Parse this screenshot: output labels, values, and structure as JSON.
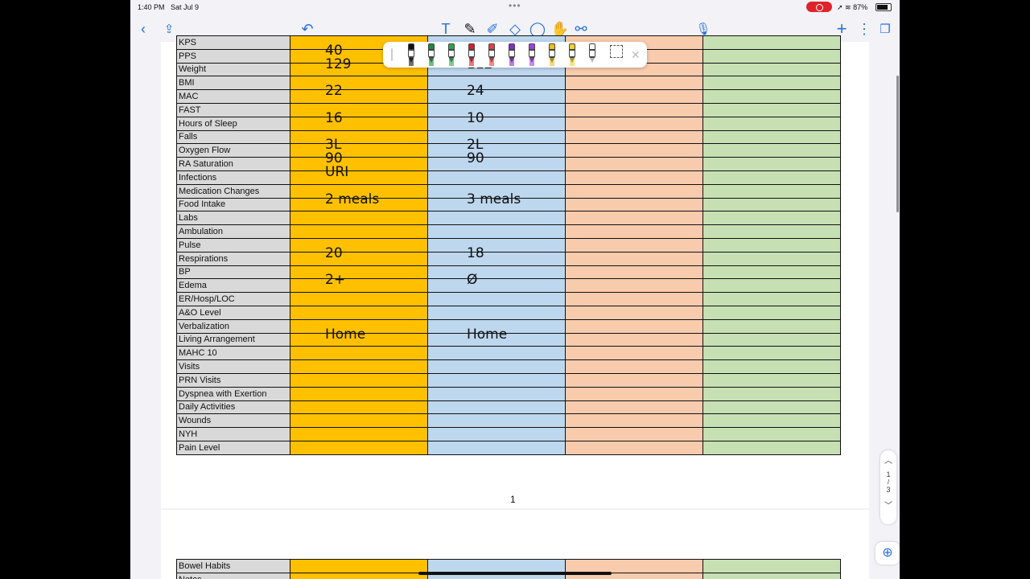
{
  "status": {
    "time": "1:40 PM",
    "date": "Sat Jul 9",
    "battery": "87%"
  },
  "table": {
    "partial_top_label": "KPS",
    "rows": [
      {
        "label": "PPS",
        "v1": "40",
        "v2": ""
      },
      {
        "label": "Weight",
        "v1": "129",
        "v2": "112"
      },
      {
        "label": "BMI",
        "v1": "",
        "v2": ""
      },
      {
        "label": "MAC",
        "v1": "22",
        "v2": "24"
      },
      {
        "label": "FAST",
        "v1": "",
        "v2": ""
      },
      {
        "label": "Hours of Sleep",
        "v1": "16",
        "v2": "10"
      },
      {
        "label": "Falls",
        "v1": "",
        "v2": ""
      },
      {
        "label": "Oxygen Flow",
        "v1": "3L",
        "v2": "2L"
      },
      {
        "label": "RA Saturation",
        "v1": "90",
        "v2": "90"
      },
      {
        "label": "Infections",
        "v1": "URI",
        "v2": ""
      },
      {
        "label": "Medication Changes",
        "v1": "",
        "v2": ""
      },
      {
        "label": "Food Intake",
        "v1": "2 meals",
        "v2": "3 meals"
      },
      {
        "label": "Labs",
        "v1": "",
        "v2": ""
      },
      {
        "label": "Ambulation",
        "v1": "",
        "v2": ""
      },
      {
        "label": "Pulse",
        "v1": "",
        "v2": ""
      },
      {
        "label": "Respirations",
        "v1": "20",
        "v2": "18"
      },
      {
        "label": "BP",
        "v1": "",
        "v2": ""
      },
      {
        "label": "Edema",
        "v1": "2+",
        "v2": "Ø"
      },
      {
        "label": "ER/Hosp/LOC",
        "v1": "",
        "v2": ""
      },
      {
        "label": "A&O Level",
        "v1": "",
        "v2": ""
      },
      {
        "label": "Verbalization",
        "v1": "",
        "v2": ""
      },
      {
        "label": "Living Arrangement",
        "v1": "Home",
        "v2": "Home"
      },
      {
        "label": "MAHC 10",
        "v1": "",
        "v2": ""
      },
      {
        "label": "Visits",
        "v1": "",
        "v2": ""
      },
      {
        "label": "PRN Visits",
        "v1": "",
        "v2": ""
      },
      {
        "label": "Dyspnea with Exertion",
        "v1": "",
        "v2": ""
      },
      {
        "label": "Daily Activities",
        "v1": "",
        "v2": ""
      },
      {
        "label": "Wounds",
        "v1": "",
        "v2": ""
      },
      {
        "label": "NYH",
        "v1": "",
        "v2": ""
      },
      {
        "label": "Pain Level",
        "v1": "",
        "v2": ""
      }
    ],
    "page2_rows": [
      {
        "label": "Bowel Habits"
      },
      {
        "label": "Notes"
      }
    ]
  },
  "page_number": "1",
  "page_indicator": {
    "current": "1",
    "total": "3"
  },
  "pens": [
    {
      "color": "#111111"
    },
    {
      "color": "#1a8c3a"
    },
    {
      "color": "#2aa84a"
    },
    {
      "color": "#d8202a"
    },
    {
      "color": "#e8403a"
    },
    {
      "color": "#8a2ad0"
    },
    {
      "color": "#a040e0"
    },
    {
      "color": "#e8c020"
    },
    {
      "color": "#f0d030"
    },
    {
      "color": "#ffffff"
    }
  ],
  "icons": {
    "back": "chevron-left-icon",
    "share": "share-icon",
    "undo": "undo-icon",
    "text": "text-tool-icon",
    "pen": "pen-tool-icon",
    "highlighter": "highlighter-icon",
    "eraser": "eraser-icon",
    "lasso": "lasso-icon",
    "shapes": "shape-tool-icon",
    "link": "link-tool-icon",
    "mic": "microphone-icon",
    "add": "plus-icon",
    "more": "more-icon",
    "pages": "pages-icon"
  }
}
